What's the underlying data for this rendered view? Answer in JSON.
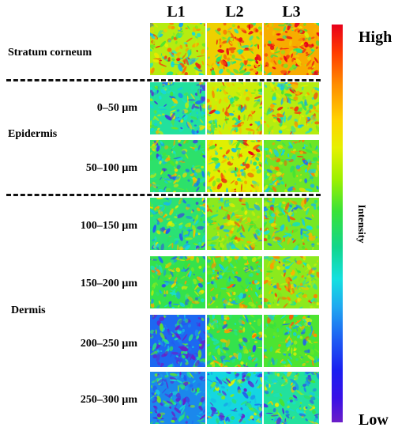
{
  "columns": [
    "L1",
    "L2",
    "L3"
  ],
  "sections": {
    "stratum_corneum": "Stratum corneum",
    "epidermis": "Epidermis",
    "dermis": "Dermis"
  },
  "depths": [
    "0–50 μm",
    "50–100 μm",
    "100–150 μm",
    "150–200 μm",
    "200–250 μm",
    "250–300 μm"
  ],
  "colorbar": {
    "high": "High",
    "low": "Low",
    "title": "Intensity",
    "colors": [
      "#e8001a",
      "#ff8c00",
      "#e6f000",
      "#38e238",
      "#14e0e0",
      "#1e5ef2",
      "#6b1ec8"
    ]
  },
  "tiles": [
    {
      "row": "Stratum corneum",
      "levels": [
        0.62,
        0.72,
        0.78
      ]
    },
    {
      "row": "0–50 μm",
      "levels": [
        0.4,
        0.64,
        0.62
      ]
    },
    {
      "row": "50–100 μm",
      "levels": [
        0.45,
        0.66,
        0.55
      ]
    },
    {
      "row": "100–150 μm",
      "levels": [
        0.44,
        0.58,
        0.56
      ]
    },
    {
      "row": "150–200 μm",
      "levels": [
        0.48,
        0.52,
        0.58
      ]
    },
    {
      "row": "200–250 μm",
      "levels": [
        0.18,
        0.48,
        0.52
      ]
    },
    {
      "row": "250–300 μm",
      "levels": [
        0.22,
        0.32,
        0.4
      ]
    }
  ]
}
